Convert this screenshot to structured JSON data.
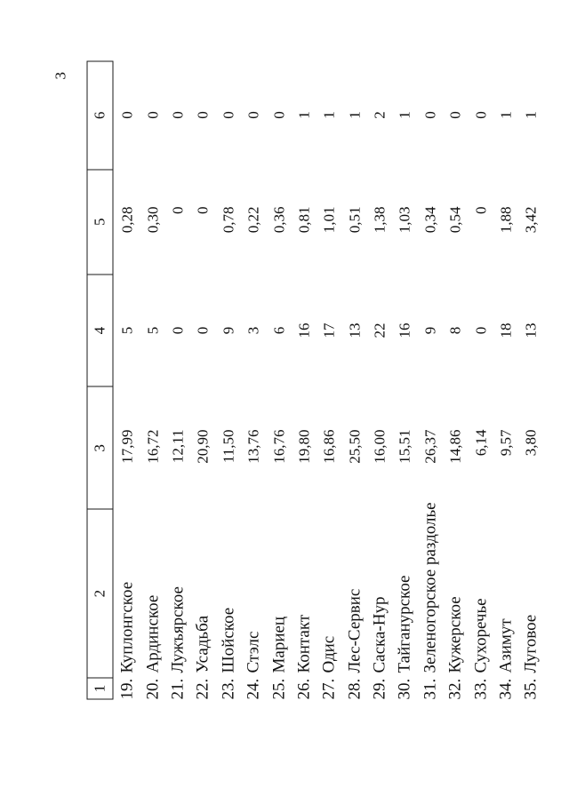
{
  "page": {
    "number": "3"
  },
  "colors": {
    "ink": "#111111",
    "line": "#1a1a1a",
    "paper": "#ffffff"
  },
  "table": {
    "header": {
      "columns": [
        "1",
        "2",
        "3",
        "4",
        "5",
        "6"
      ]
    },
    "rows": [
      {
        "num": "19.",
        "name": "Куплонгское",
        "c3": "17,99",
        "c4": "5",
        "c5": "0,28",
        "c6": "0"
      },
      {
        "num": "20.",
        "name": "Ардинское",
        "c3": "16,72",
        "c4": "5",
        "c5": "0,30",
        "c6": "0"
      },
      {
        "num": "21.",
        "name": "Лужъярское",
        "c3": "12,11",
        "c4": "0",
        "c5": "0",
        "c6": "0"
      },
      {
        "num": "22.",
        "name": "Усадьба",
        "c3": "20,90",
        "c4": "0",
        "c5": "0",
        "c6": "0"
      },
      {
        "num": "23.",
        "name": "Шойское",
        "c3": "11,50",
        "c4": "9",
        "c5": "0,78",
        "c6": "0"
      },
      {
        "num": "24.",
        "name": "Стэлс",
        "c3": "13,76",
        "c4": "3",
        "c5": "0,22",
        "c6": "0"
      },
      {
        "num": "25.",
        "name": "Мариец",
        "c3": "16,76",
        "c4": "6",
        "c5": "0,36",
        "c6": "0"
      },
      {
        "num": "26.",
        "name": "Контакт",
        "c3": "19,80",
        "c4": "16",
        "c5": "0,81",
        "c6": "1"
      },
      {
        "num": "27.",
        "name": "Одис",
        "c3": "16,86",
        "c4": "17",
        "c5": "1,01",
        "c6": "1"
      },
      {
        "num": "28.",
        "name": "Лес-Сервис",
        "c3": "25,50",
        "c4": "13",
        "c5": "0,51",
        "c6": "1"
      },
      {
        "num": "29.",
        "name": "Саска-Нур",
        "c3": "16,00",
        "c4": "22",
        "c5": "1,38",
        "c6": "2"
      },
      {
        "num": "30.",
        "name": "Тайганурское",
        "c3": "15,51",
        "c4": "16",
        "c5": "1,03",
        "c6": "1"
      },
      {
        "num": "31.",
        "name": "Зеленогорское раздолье",
        "c3": "26,37",
        "c4": "9",
        "c5": "0,34",
        "c6": "0"
      },
      {
        "num": "32.",
        "name": "Кужерское",
        "c3": "14,86",
        "c4": "8",
        "c5": "0,54",
        "c6": "0"
      },
      {
        "num": "33.",
        "name": "Сухоречье",
        "c3": "6,14",
        "c4": "0",
        "c5": "0",
        "c6": "0"
      },
      {
        "num": "34.",
        "name": "Азимут",
        "c3": "9,57",
        "c4": "18",
        "c5": "1,88",
        "c6": "1"
      },
      {
        "num": "35.",
        "name": "Луговое",
        "c3": "3,80",
        "c4": "13",
        "c5": "3,42",
        "c6": "1"
      }
    ]
  }
}
